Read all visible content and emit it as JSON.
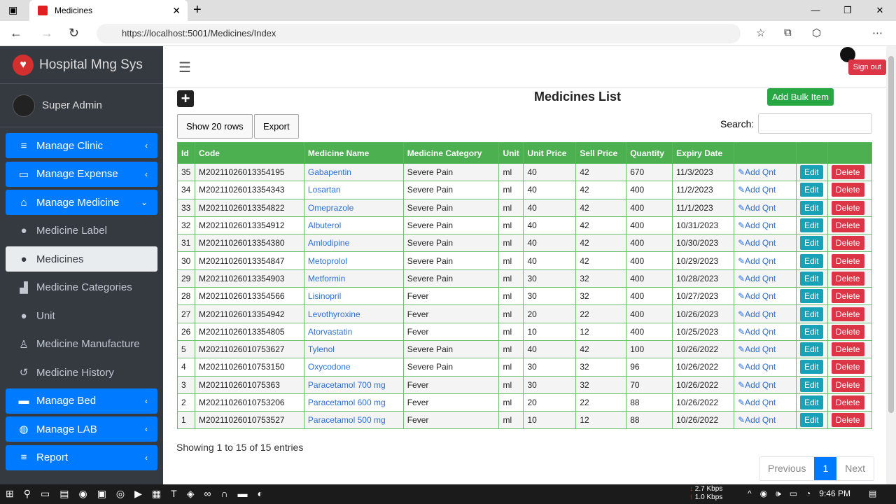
{
  "browser": {
    "tab_title": "Medicines",
    "url": "https://localhost:5001/Medicines/Index"
  },
  "sidebar": {
    "brand": "Hospital Mng Sys",
    "user": "Super Admin",
    "items": [
      {
        "label": "Manage Clinic",
        "icon": "database-icon",
        "glyph": "≡",
        "style": "blue",
        "chev": "‹"
      },
      {
        "label": "Manage Expense",
        "icon": "money-icon",
        "glyph": "▭",
        "style": "blue",
        "chev": "‹"
      },
      {
        "label": "Manage Medicine",
        "icon": "home-icon",
        "glyph": "⌂",
        "style": "blue",
        "chev": "⌄"
      },
      {
        "label": "Medicine Label",
        "icon": "user-cog-icon",
        "glyph": "●",
        "style": "sub"
      },
      {
        "label": "Medicines",
        "icon": "user-cog-icon",
        "glyph": "●",
        "style": "active"
      },
      {
        "label": "Medicine Categories",
        "icon": "building-icon",
        "glyph": "▟",
        "style": "sub"
      },
      {
        "label": "Unit",
        "icon": "user-cog-icon",
        "glyph": "●",
        "style": "sub"
      },
      {
        "label": "Medicine Manufacture",
        "icon": "user-tie-icon",
        "glyph": "♙",
        "style": "sub"
      },
      {
        "label": "Medicine History",
        "icon": "history-icon",
        "glyph": "↺",
        "style": "sub"
      },
      {
        "label": "Manage Bed",
        "icon": "bed-icon",
        "glyph": "▬",
        "style": "blue",
        "chev": "‹"
      },
      {
        "label": "Manage LAB",
        "icon": "globe-icon",
        "glyph": "◍",
        "style": "blue",
        "chev": "‹"
      },
      {
        "label": "Report",
        "icon": "database-icon",
        "glyph": "≡",
        "style": "blue",
        "chev": "‹"
      }
    ]
  },
  "header": {
    "sign_out": "Sign out"
  },
  "page": {
    "title": "Medicines List",
    "add_bulk": "Add Bulk Item",
    "show_rows": "Show 20 rows",
    "export": "Export",
    "search_label": "Search:",
    "search_value": "",
    "columns": [
      "Id",
      "Code",
      "Medicine Name",
      "Medicine Category",
      "Unit",
      "Unit Price",
      "Sell Price",
      "Quantity",
      "Expiry Date",
      "",
      "",
      ""
    ],
    "actions": {
      "add_qnt": "Add Qnt",
      "edit": "Edit",
      "delete": "Delete"
    },
    "rows": [
      [
        "35",
        "M20211026013354195",
        "Gabapentin",
        "Severe Pain",
        "ml",
        "40",
        "42",
        "670",
        "11/3/2023"
      ],
      [
        "34",
        "M20211026013354343",
        "Losartan",
        "Severe Pain",
        "ml",
        "40",
        "42",
        "400",
        "11/2/2023"
      ],
      [
        "33",
        "M20211026013354822",
        "Omeprazole",
        "Severe Pain",
        "ml",
        "40",
        "42",
        "400",
        "11/1/2023"
      ],
      [
        "32",
        "M20211026013354912",
        "Albuterol",
        "Severe Pain",
        "ml",
        "40",
        "42",
        "400",
        "10/31/2023"
      ],
      [
        "31",
        "M20211026013354380",
        "Amlodipine",
        "Severe Pain",
        "ml",
        "40",
        "42",
        "400",
        "10/30/2023"
      ],
      [
        "30",
        "M20211026013354847",
        "Metoprolol",
        "Severe Pain",
        "ml",
        "40",
        "42",
        "400",
        "10/29/2023"
      ],
      [
        "29",
        "M20211026013354903",
        "Metformin",
        "Severe Pain",
        "ml",
        "30",
        "32",
        "400",
        "10/28/2023"
      ],
      [
        "28",
        "M20211026013354566",
        "Lisinopril",
        "Fever",
        "ml",
        "30",
        "32",
        "400",
        "10/27/2023"
      ],
      [
        "27",
        "M20211026013354942",
        "Levothyroxine",
        "Fever",
        "ml",
        "20",
        "22",
        "400",
        "10/26/2023"
      ],
      [
        "26",
        "M20211026013354805",
        "Atorvastatin",
        "Fever",
        "ml",
        "10",
        "12",
        "400",
        "10/25/2023"
      ],
      [
        "5",
        "M20211026010753627",
        "Tylenol",
        "Severe Pain",
        "ml",
        "40",
        "42",
        "100",
        "10/26/2022"
      ],
      [
        "4",
        "M20211026010753150",
        "Oxycodone",
        "Severe Pain",
        "ml",
        "30",
        "32",
        "96",
        "10/26/2022"
      ],
      [
        "3",
        "M2021102601075363",
        "Paracetamol 700 mg",
        "Fever",
        "ml",
        "30",
        "32",
        "70",
        "10/26/2022"
      ],
      [
        "2",
        "M20211026010753206",
        "Paracetamol 600 mg",
        "Fever",
        "ml",
        "20",
        "22",
        "88",
        "10/26/2022"
      ],
      [
        "1",
        "M20211026010753527",
        "Paracetamol 500 mg",
        "Fever",
        "ml",
        "10",
        "12",
        "88",
        "10/26/2022"
      ]
    ],
    "info": "Showing 1 to 15 of 15 entries",
    "pager": {
      "prev": "Previous",
      "current": "1",
      "next": "Next"
    }
  },
  "taskbar": {
    "down": "2.7 Kbps",
    "up": "1.0 Kbps",
    "time": "9:46 PM"
  }
}
